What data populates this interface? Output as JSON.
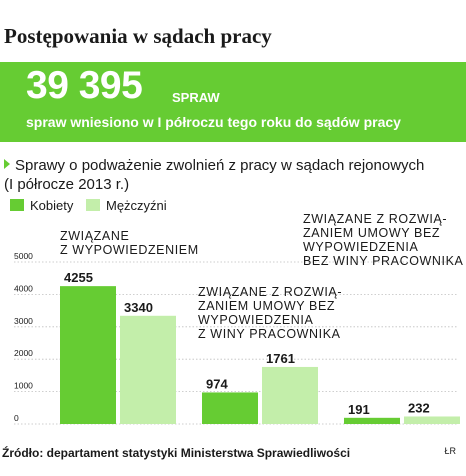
{
  "title": "Postępowania w sądach pracy",
  "banner": {
    "number": "39 395",
    "unit": "SPRAW",
    "subtitle": "spraw wniesiono w I półroczu tego roku do sądów pracy",
    "color": "#66cc33"
  },
  "chart_data": {
    "type": "bar",
    "title": "Sprawy o podważenie zwolnień  z pracy w sądach rejonowych",
    "subtitle": "(I półrocze 2013 r.)",
    "categories": [
      "ZWIĄZANE\nZ WYPOWIEDZENIEM",
      "ZWIĄZANE Z ROZWIĄ-\nZANIEM  UMOWY BEZ\nWYPOWIEDZENIA\nZ WINY PRACOWNIKA",
      "ZWIĄZANE Z ROZWIĄ-\nZANIEM UMOWY BEZ\nWYPOWIEDZENIA\nBEZ WINY PRACOWNIKA"
    ],
    "series": [
      {
        "name": "Kobiety",
        "values": [
          4255,
          974,
          191
        ],
        "color": "#66cc33"
      },
      {
        "name": "Mężczyźni",
        "values": [
          3340,
          1761,
          232
        ],
        "color": "#c3eeaa"
      }
    ],
    "value_labels": [
      [
        "4255",
        "974",
        "191"
      ],
      [
        "3340",
        "1761",
        "232"
      ]
    ],
    "y_ticks": [
      "5000",
      "4000",
      "3000",
      "2000",
      "1000",
      "0"
    ],
    "ylim": [
      0,
      5000
    ],
    "grid": true,
    "legend_position": "top-left"
  },
  "source": "Źródło: departament statystyki Ministerstwa Sprawiedliwości",
  "credit": "ŁR"
}
